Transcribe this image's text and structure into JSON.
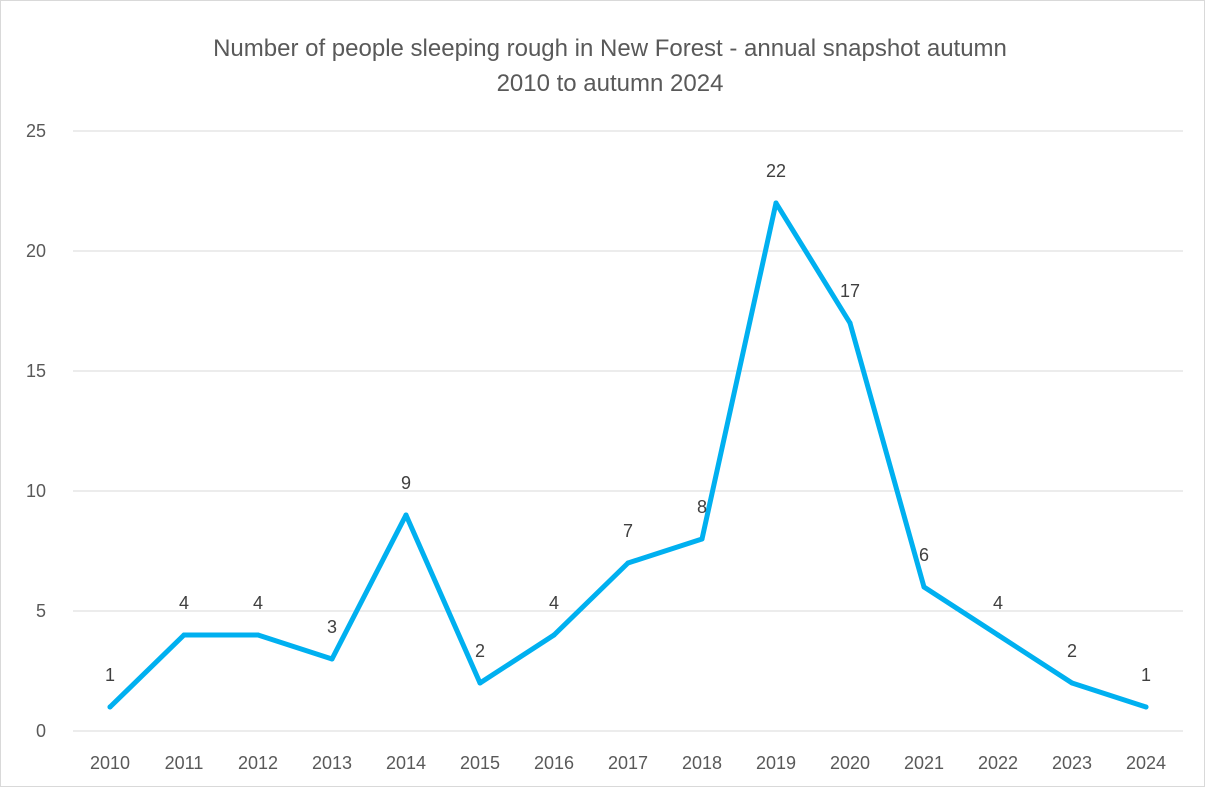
{
  "chart_data": {
    "type": "line",
    "title_lines": [
      "Number of people sleeping rough in New Forest - annual snapshot autumn",
      "2010 to autumn 2024"
    ],
    "xlabel": "",
    "ylabel": "",
    "categories": [
      "2010",
      "2011",
      "2012",
      "2013",
      "2014",
      "2015",
      "2016",
      "2017",
      "2018",
      "2019",
      "2020",
      "2021",
      "2022",
      "2023",
      "2024"
    ],
    "series": [
      {
        "values": [
          1,
          4,
          4,
          3,
          9,
          2,
          4,
          7,
          8,
          22,
          17,
          6,
          4,
          2,
          1
        ],
        "color": "#00b0f0"
      }
    ],
    "ylim": [
      0,
      25
    ],
    "yticks": [
      0,
      5,
      10,
      15,
      20,
      25
    ],
    "grid": true,
    "legend": "none",
    "data_labels": true
  }
}
